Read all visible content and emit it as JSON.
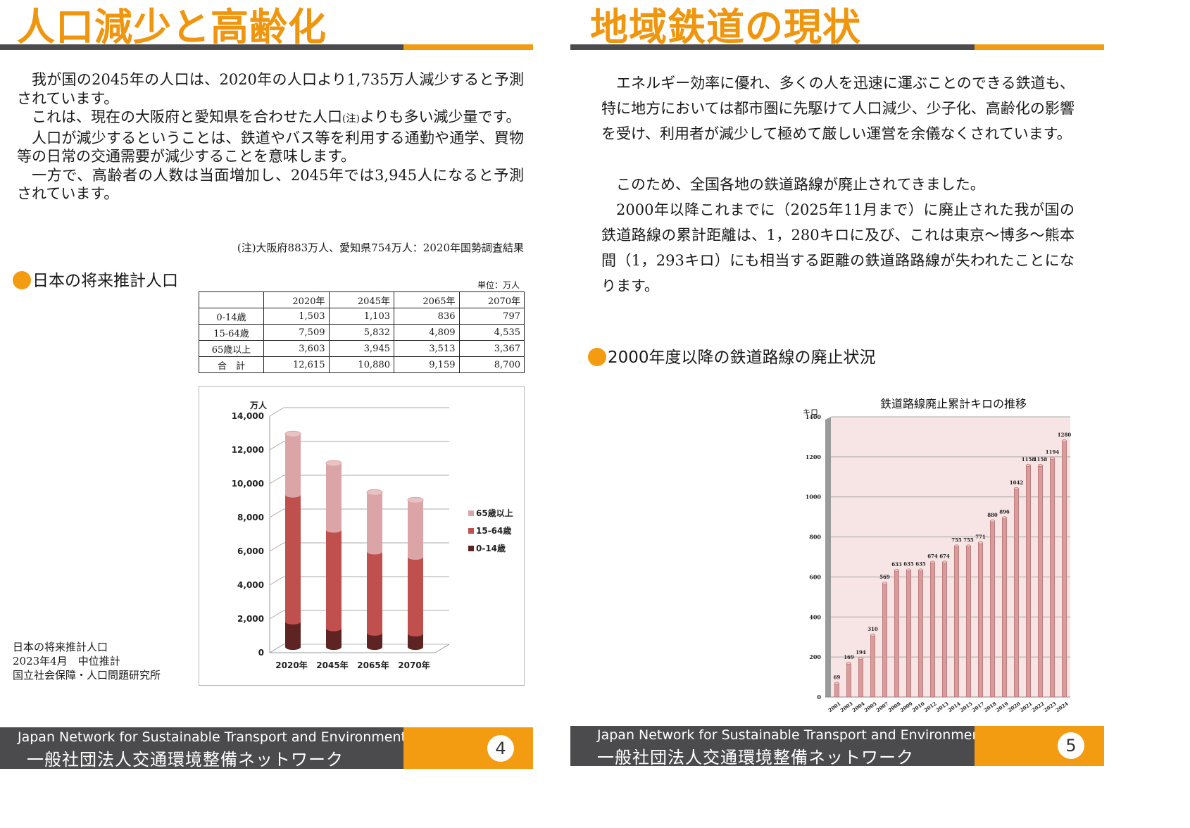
{
  "left": {
    "title": "人口減少と高齢化",
    "paragraphs": [
      "我が国の2045年の人口は、2020年の人口より1,735万人減少すると予測されています。",
      "これは、現在の大阪府と愛知県を合わせた人口",
      "よりも多い減少量です。",
      "人口が減少するということは、鉄道やバス等を利用する通勤や通学、買物等の日常の交通需要が減少することを意味します。",
      "一方で、高齢者の人数は当面増加し、2045年では3,945人になると予測されています。"
    ],
    "note_marker": "(注)",
    "note": "(注)大阪府883万人、愛知県754万人：2020年国勢調査結果",
    "section_title": "日本の将来推計人口",
    "unit": "単位：万人",
    "table": {
      "headers": [
        "2020年",
        "2045年",
        "2065年",
        "2070年"
      ],
      "rows": [
        {
          "label": "0-14歳",
          "values": [
            "1,503",
            "1,103",
            "836",
            "797"
          ]
        },
        {
          "label": "15-64歳",
          "values": [
            "7,509",
            "5,832",
            "4,809",
            "4,535"
          ]
        },
        {
          "label": "65歳以上",
          "values": [
            "3,603",
            "3,945",
            "3,513",
            "3,367"
          ]
        },
        {
          "label": "合　計",
          "values": [
            "12,615",
            "10,880",
            "9,159",
            "8,700"
          ]
        }
      ]
    },
    "source": [
      "日本の将来推計人口",
      "2023年4月　中位推計",
      "国立社会保障・人口問題研究所"
    ],
    "footer_en": "Japan Network for Sustainable Transport and Environment",
    "footer_jp": "一般社団法人交通環境整備ネットワーク",
    "page_number": "4"
  },
  "right": {
    "title": "地域鉄道の現状",
    "paragraphs": [
      "エネルギー効率に優れ、多くの人を迅速に運ぶことのできる鉄道も、特に地方においては都市圏に先駆けて人口減少、少子化、高齢化の影響を受け、利用者が減少して極めて厳しい運営を余儀なくされています。",
      "このため、全国各地の鉄道路線が廃止されてきました。",
      "2000年以降これまでに（2025年11月まで）に廃止された我が国の鉄道路線の累計距離は、1，280キロに及び、これは東京～博多～熊本間（1，293キロ）にも相当する距離の鉄道路路線が失われたことになります。"
    ],
    "section_title": "2000年度以降の鉄道路線の廃止状況",
    "footer_en": "Japan Network for Sustainable Transport and Environment",
    "footer_jp": "一般社団法人交通環境整備ネットワーク",
    "page_number": "5"
  },
  "chart_data": [
    {
      "type": "bar",
      "stacked": true,
      "ylabel": "万人",
      "categories": [
        "2020年",
        "2045年",
        "2065年",
        "2070年"
      ],
      "series": [
        {
          "name": "0-14歳",
          "values": [
            1503,
            1103,
            836,
            797
          ],
          "color": "#5e2424"
        },
        {
          "name": "15-64歳",
          "values": [
            7509,
            5832,
            4809,
            4535
          ],
          "color": "#c0504d"
        },
        {
          "name": "65歳以上",
          "values": [
            3603,
            3945,
            3513,
            3367
          ],
          "color": "#dba5a8"
        }
      ],
      "yticks": [
        "0",
        "2,000",
        "4,000",
        "6,000",
        "8,000",
        "10,000",
        "12,000",
        "14,000"
      ],
      "ylim": [
        0,
        14000
      ],
      "legend": "right",
      "grid": true
    },
    {
      "type": "bar",
      "title": "鉄道路線廃止累計キロの推移",
      "ylabel": "キロ",
      "categories": [
        "2001",
        "2003",
        "2004",
        "2005",
        "2007",
        "2008",
        "2009",
        "2010",
        "2012",
        "2013",
        "2014",
        "2015",
        "2017",
        "2018",
        "2019",
        "2020",
        "2021",
        "2022",
        "2023",
        "2024"
      ],
      "values": [
        69,
        169,
        194,
        310,
        569,
        633,
        635,
        635,
        674,
        674,
        755,
        755,
        771,
        880,
        896,
        1042,
        1158,
        1158,
        1194,
        1280
      ],
      "yticks": [
        "0",
        "200",
        "400",
        "600",
        "800",
        "1000",
        "1200",
        "1400"
      ],
      "ylim": [
        0,
        1400
      ],
      "grid": true,
      "bar_color": "#d99c9c",
      "background": "#f7e4e4"
    }
  ]
}
